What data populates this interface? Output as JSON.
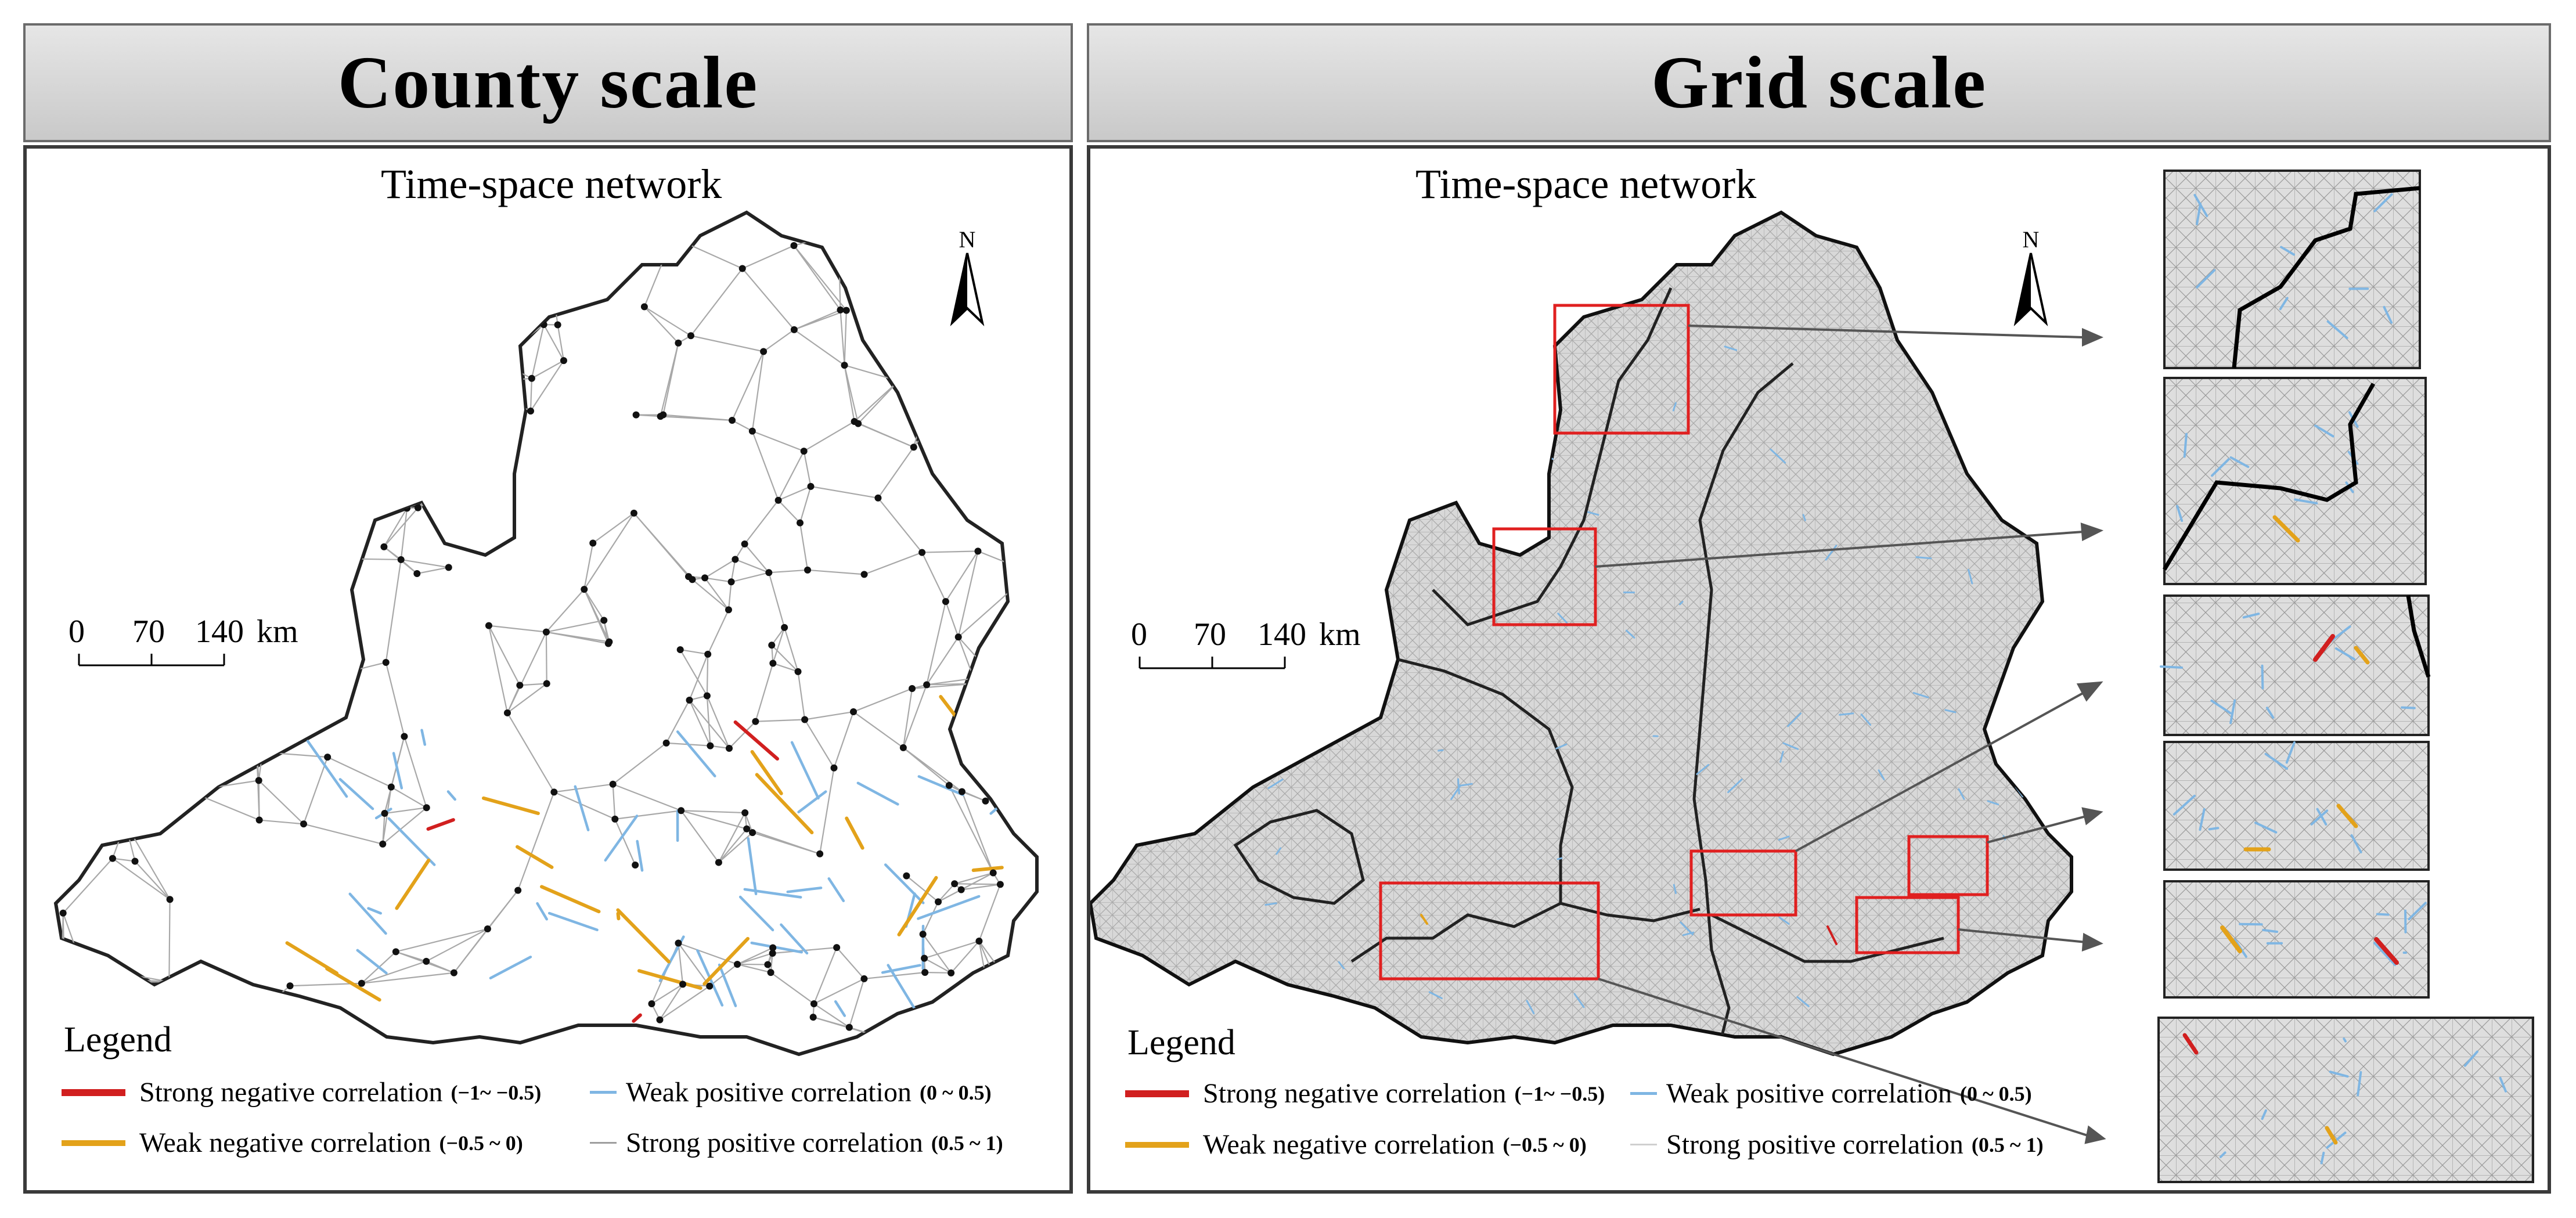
{
  "panels": {
    "county": {
      "header": "County  scale",
      "subtitle": "Time-space network"
    },
    "grid": {
      "header": "Grid  scale",
      "subtitle": "Time-space network"
    }
  },
  "scale_bar": {
    "ticks": [
      "0",
      "70",
      "140"
    ],
    "unit": "km"
  },
  "north_label": "N",
  "legend": {
    "title": "Legend",
    "items": [
      {
        "label": "Strong negative correlation",
        "range": "(−1~ −0.5)",
        "color": "#d11f1f"
      },
      {
        "label": "Weak positive  correlation",
        "range": "(0 ~ 0.5)",
        "color": "#7fb6e3"
      },
      {
        "label": "Weak negative correlation",
        "range": "(−0.5 ~ 0)",
        "color": "#e3a21a"
      },
      {
        "label": "Strong positive correlation",
        "range": "(0.5 ~ 1)",
        "color": "#9e9e9e"
      }
    ]
  },
  "colors": {
    "highlight_box": "#e02020",
    "arrow": "#555555",
    "map_fill_grid": "#d8d8d8",
    "boundary": "#111111"
  }
}
